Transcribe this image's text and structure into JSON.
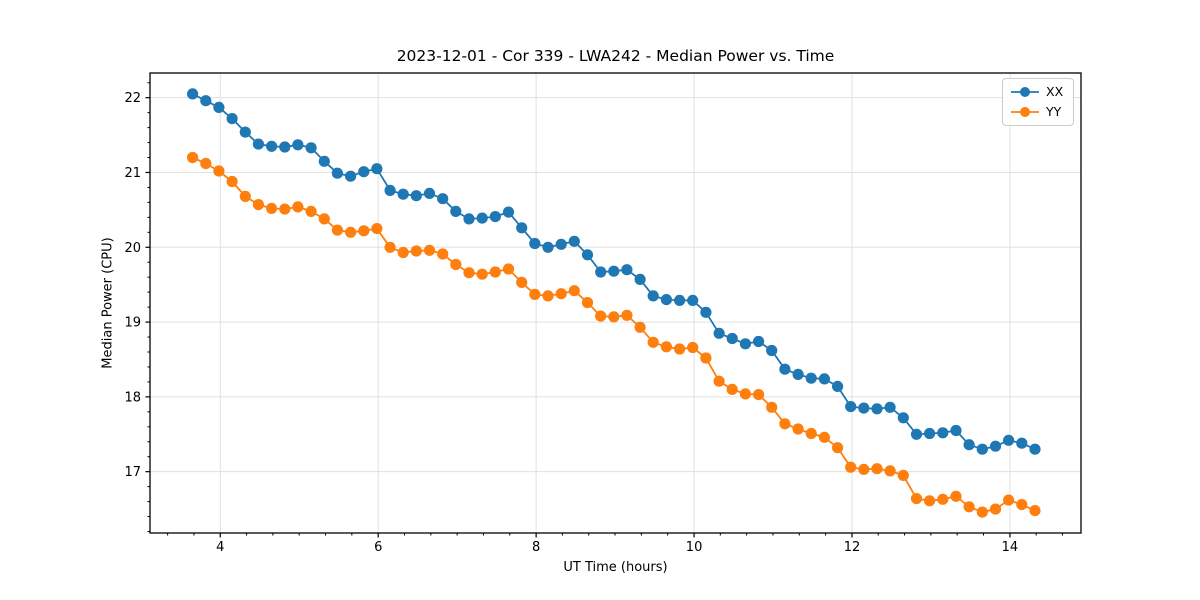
{
  "chart_data": {
    "type": "line",
    "title": "2023-12-01 - Cor 339 - LWA242 - Median Power vs. Time",
    "xlabel": "UT Time (hours)",
    "ylabel": "Median Power (CPU)",
    "xlim": [
      3.11,
      14.9
    ],
    "ylim": [
      16.18,
      22.33
    ],
    "xticks": [
      4,
      6,
      8,
      10,
      12,
      14
    ],
    "yticks": [
      17,
      18,
      19,
      20,
      21,
      22
    ],
    "minor_x_step": 0.3333,
    "minor_y_step": 0.2,
    "grid": true,
    "grid_color": "#e0e0e0",
    "legend_position": "upper right",
    "x": [
      3.65,
      3.817,
      3.983,
      4.15,
      4.317,
      4.483,
      4.65,
      4.817,
      4.983,
      5.15,
      5.317,
      5.483,
      5.65,
      5.817,
      5.983,
      6.15,
      6.317,
      6.483,
      6.65,
      6.817,
      6.983,
      7.15,
      7.317,
      7.483,
      7.65,
      7.817,
      7.983,
      8.15,
      8.317,
      8.483,
      8.65,
      8.817,
      8.983,
      9.15,
      9.317,
      9.483,
      9.65,
      9.817,
      9.983,
      10.15,
      10.317,
      10.483,
      10.65,
      10.817,
      10.983,
      11.15,
      11.317,
      11.483,
      11.65,
      11.817,
      11.983,
      12.15,
      12.317,
      12.483,
      12.65,
      12.817,
      12.983,
      13.15,
      13.317,
      13.483,
      13.65,
      13.817,
      13.983,
      14.15,
      14.317
    ],
    "series": [
      {
        "name": "XX",
        "color": "#1f77b4",
        "values": [
          22.05,
          21.96,
          21.87,
          21.72,
          21.54,
          21.38,
          21.35,
          21.34,
          21.37,
          21.33,
          21.15,
          20.99,
          20.95,
          21.01,
          21.05,
          20.76,
          20.71,
          20.69,
          20.72,
          20.65,
          20.48,
          20.38,
          20.39,
          20.41,
          20.47,
          20.26,
          20.05,
          20.0,
          20.04,
          20.08,
          19.9,
          19.67,
          19.68,
          19.7,
          19.57,
          19.35,
          19.3,
          19.29,
          19.29,
          19.13,
          18.85,
          18.78,
          18.71,
          18.74,
          18.62,
          18.37,
          18.3,
          18.25,
          18.24,
          18.14,
          17.87,
          17.85,
          17.84,
          17.86,
          17.72,
          17.5,
          17.51,
          17.52,
          17.55,
          17.36,
          17.3,
          17.34,
          17.42,
          17.38,
          17.3
        ]
      },
      {
        "name": "YY",
        "color": "#ff7f0e",
        "values": [
          21.2,
          21.12,
          21.02,
          20.88,
          20.68,
          20.57,
          20.52,
          20.51,
          20.54,
          20.48,
          20.38,
          20.23,
          20.2,
          20.22,
          20.25,
          20.0,
          19.93,
          19.95,
          19.96,
          19.91,
          19.77,
          19.66,
          19.64,
          19.67,
          19.71,
          19.53,
          19.37,
          19.35,
          19.38,
          19.42,
          19.26,
          19.08,
          19.07,
          19.09,
          18.93,
          18.73,
          18.67,
          18.64,
          18.66,
          18.52,
          18.21,
          18.1,
          18.04,
          18.03,
          17.86,
          17.64,
          17.57,
          17.51,
          17.46,
          17.32,
          17.06,
          17.03,
          17.04,
          17.01,
          16.95,
          16.64,
          16.61,
          16.63,
          16.67,
          16.53,
          16.46,
          16.5,
          16.62,
          16.56,
          16.48
        ]
      }
    ]
  }
}
